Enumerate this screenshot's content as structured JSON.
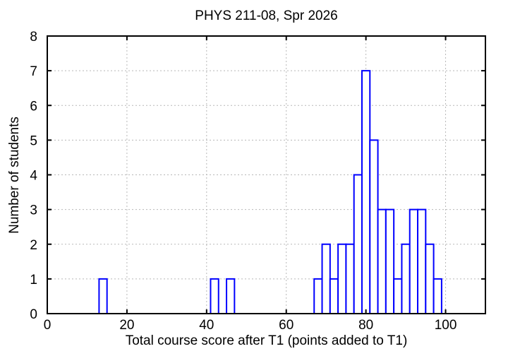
{
  "chart_data": {
    "type": "bar",
    "subtype": "histogram",
    "title": "PHYS 211-08, Spr 2026",
    "xlabel": "Total course score after T1 (points added to T1)",
    "ylabel": "Number of students",
    "xlim": [
      0,
      110
    ],
    "ylim": [
      0,
      8
    ],
    "xticks": [
      0,
      20,
      40,
      60,
      80,
      100
    ],
    "yticks": [
      0,
      1,
      2,
      3,
      4,
      5,
      6,
      7,
      8
    ],
    "grid": true,
    "legend_position": "none",
    "bin_width": 2,
    "bars": [
      {
        "x0": 13,
        "x1": 15,
        "count": 1
      },
      {
        "x0": 41,
        "x1": 43,
        "count": 1
      },
      {
        "x0": 45,
        "x1": 47,
        "count": 1
      },
      {
        "x0": 67,
        "x1": 69,
        "count": 1
      },
      {
        "x0": 69,
        "x1": 71,
        "count": 2
      },
      {
        "x0": 71,
        "x1": 73,
        "count": 1
      },
      {
        "x0": 73,
        "x1": 75,
        "count": 2
      },
      {
        "x0": 75,
        "x1": 77,
        "count": 2
      },
      {
        "x0": 77,
        "x1": 79,
        "count": 4
      },
      {
        "x0": 79,
        "x1": 81,
        "count": 7
      },
      {
        "x0": 81,
        "x1": 83,
        "count": 5
      },
      {
        "x0": 83,
        "x1": 85,
        "count": 3
      },
      {
        "x0": 85,
        "x1": 87,
        "count": 3
      },
      {
        "x0": 87,
        "x1": 89,
        "count": 1
      },
      {
        "x0": 89,
        "x1": 91,
        "count": 2
      },
      {
        "x0": 91,
        "x1": 93,
        "count": 3
      },
      {
        "x0": 93,
        "x1": 95,
        "count": 3
      },
      {
        "x0": 95,
        "x1": 97,
        "count": 2
      },
      {
        "x0": 97,
        "x1": 99,
        "count": 1
      }
    ],
    "colors": {
      "bar_outline": "#0000ff",
      "bar_fill": "#ffffff",
      "grid": "#b8b8b8",
      "axis": "#000000",
      "text": "#000000",
      "background": "#ffffff"
    }
  }
}
